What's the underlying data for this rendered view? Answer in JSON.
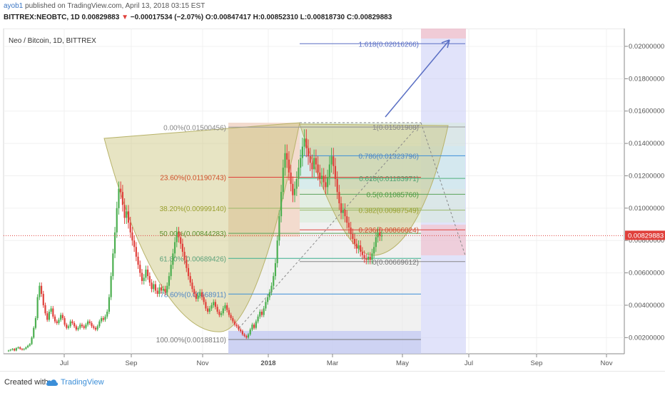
{
  "header": {
    "author": "ayob1",
    "published_text": " published on TradingView.com, April 13, 2018 03:15 EST",
    "symbol": "BITTREX:NEOBTC, 1D",
    "last": "0.00829883",
    "change_arrow": "▼",
    "change": "−0.00017534 (−2.07%)",
    "o_label": "O:",
    "o_value": "0.00847417",
    "h_label": "H:",
    "h_value": "0.00852310",
    "l_label": "L:",
    "l_value": "0.00818730",
    "c_label": "C:",
    "c_value": "0.00829883"
  },
  "footer": {
    "created_with": "Created with",
    "brand": "TradingView"
  },
  "colors": {
    "up": "#4caf50",
    "down": "#e0403b",
    "axis": "#555555",
    "fib_left": "#9aa0a6",
    "price_tag": "#e0403b",
    "arrow": "#5a6fc4",
    "cup_fill": "#c9c47a"
  },
  "chart_data": {
    "type": "candlestick",
    "title": "Neo / Bitcoin, 1D, BITTREX",
    "ylim": [
      0.001,
      0.0211
    ],
    "y_ticks": [
      "0.02000000",
      "0.01800000",
      "0.01600000",
      "0.01400000",
      "0.01200000",
      "0.01000000",
      "0.00800000",
      "0.00600000",
      "0.00400000",
      "0.00200000"
    ],
    "x_ticks": [
      "Jul",
      "Sep",
      "Nov",
      "2018",
      "Mar",
      "May",
      "Jul",
      "Sep",
      "Nov"
    ],
    "current_price": "0.00829883",
    "fib_retracement_left": [
      {
        "label": "0.00%(0.01500456)",
        "value": 0.01500456
      },
      {
        "label": "23.60%(0.01190743)",
        "value": 0.01190743
      },
      {
        "label": "38.20%(0.00999140)",
        "value": 0.0099914
      },
      {
        "label": "50.00%(0.00844283)",
        "value": 0.00844283
      },
      {
        "label": "61.80%(0.00689426)",
        "value": 0.00689426
      },
      {
        "label": "78.60%(0.00468911)",
        "value": 0.00468911
      },
      {
        "label": "100.00%(0.00188110)",
        "value": 0.0018811
      }
    ],
    "fib_retracement_right": [
      {
        "label": "1.618(0.02016266)",
        "value": 0.02016266
      },
      {
        "label": "1(0.01501908)",
        "value": 0.01501908
      },
      {
        "label": "0.786(0.01323796)",
        "value": 0.01323796
      },
      {
        "label": "0.618(0.01183971)",
        "value": 0.01183971
      },
      {
        "label": "0.5(0.01085760)",
        "value": 0.0108576
      },
      {
        "label": "0.382(0.00987549)",
        "value": 0.00987549
      },
      {
        "label": "0.236(0.00866024)",
        "value": 0.00866024
      },
      {
        "label": "0(0.00669612)",
        "value": 0.00669612
      }
    ],
    "closes": [
      0.0012,
      0.00125,
      0.0013,
      0.0012,
      0.00135,
      0.0014,
      0.0013,
      0.00125,
      0.0013,
      0.0014,
      0.0015,
      0.0016,
      0.002,
      0.0026,
      0.0032,
      0.0045,
      0.0052,
      0.0047,
      0.004,
      0.0035,
      0.0031,
      0.0036,
      0.0038,
      0.0033,
      0.003,
      0.0029,
      0.0031,
      0.0034,
      0.0032,
      0.0028,
      0.0026,
      0.0027,
      0.003,
      0.0029,
      0.0027,
      0.0025,
      0.0026,
      0.0028,
      0.0027,
      0.0026,
      0.0028,
      0.003,
      0.0029,
      0.0027,
      0.0026,
      0.0025,
      0.0027,
      0.003,
      0.0032,
      0.0031,
      0.0033,
      0.0036,
      0.0045,
      0.0058,
      0.0072,
      0.0085,
      0.01,
      0.0112,
      0.011,
      0.0102,
      0.0094,
      0.0098,
      0.0091,
      0.0085,
      0.008,
      0.0076,
      0.007,
      0.0065,
      0.006,
      0.0055,
      0.0057,
      0.0062,
      0.0058,
      0.0054,
      0.005,
      0.0053,
      0.0049,
      0.0047,
      0.0051,
      0.0049,
      0.005,
      0.0048,
      0.0052,
      0.0058,
      0.0065,
      0.0072,
      0.0079,
      0.0085,
      0.0082,
      0.0078,
      0.0073,
      0.0068,
      0.0063,
      0.0058,
      0.0054,
      0.005,
      0.0047,
      0.0044,
      0.0046,
      0.0048,
      0.0045,
      0.0042,
      0.0038,
      0.0036,
      0.0038,
      0.004,
      0.0042,
      0.0039,
      0.0036,
      0.0034,
      0.0035,
      0.0038,
      0.004,
      0.0037,
      0.0034,
      0.0032,
      0.003,
      0.0028,
      0.0027,
      0.0025,
      0.0024,
      0.0022,
      0.0021,
      0.002,
      0.0022,
      0.0025,
      0.0028,
      0.0026,
      0.003,
      0.0033,
      0.0036,
      0.0034,
      0.0038,
      0.0042,
      0.0045,
      0.0048,
      0.0052,
      0.0058,
      0.0066,
      0.008,
      0.0095,
      0.011,
      0.0125,
      0.0134,
      0.013,
      0.0122,
      0.0115,
      0.0108,
      0.0112,
      0.0118,
      0.0125,
      0.0131,
      0.0138,
      0.0143,
      0.0137,
      0.0132,
      0.0128,
      0.0124,
      0.0131,
      0.0127,
      0.0122,
      0.0118,
      0.012,
      0.0116,
      0.0113,
      0.0119,
      0.0127,
      0.0132,
      0.0126,
      0.0118,
      0.011,
      0.0103,
      0.0097,
      0.0099,
      0.0095,
      0.0091,
      0.0088,
      0.0084,
      0.0081,
      0.0078,
      0.0075,
      0.0077,
      0.0073,
      0.0071,
      0.0069,
      0.0068,
      0.007,
      0.0068,
      0.0072,
      0.0076,
      0.0082,
      0.0085,
      0.0083,
      0.0083
    ]
  }
}
